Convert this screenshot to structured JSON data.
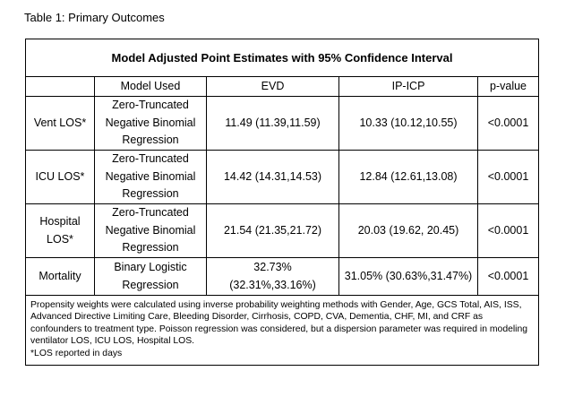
{
  "caption": "Table 1: Primary Outcomes",
  "table": {
    "title": "Model Adjusted Point Estimates with 95% Confidence Interval",
    "columns": [
      "",
      "Model Used",
      "EVD",
      "IP-ICP",
      "p-value"
    ],
    "rows": [
      {
        "label": "Vent LOS*",
        "model": "Zero-Truncated Negative Binomial Regression",
        "evd": "11.49 (11.39,11.59)",
        "ipicp": "10.33 (10.12,10.55)",
        "p": "<0.0001"
      },
      {
        "label": "ICU LOS*",
        "model": "Zero-Truncated Negative Binomial Regression",
        "evd": "14.42 (14.31,14.53)",
        "ipicp": "12.84 (12.61,13.08)",
        "p": "<0.0001"
      },
      {
        "label": "Hospital LOS*",
        "model": "Zero-Truncated Negative Binomial Regression",
        "evd": "21.54 (21.35,21.72)",
        "ipicp": "20.03 (19.62, 20.45)",
        "p": "<0.0001"
      },
      {
        "label": "Mortality",
        "model": "Binary Logistic Regression",
        "evd": "32.73% (32.31%,33.16%)",
        "ipicp": "31.05% (30.63%,31.47%)",
        "p": "<0.0001"
      }
    ],
    "footnote": "Propensity weights were calculated using inverse probability weighting methods with Gender, Age, GCS Total, AIS, ISS, Advanced Directive Limiting Care, Bleeding Disorder, Cirrhosis, COPD, CVA, Dementia, CHF, MI, and CRF as confounders to treatment type. Poisson regression was considered, but a dispersion parameter was required in modeling ventilator LOS, ICU LOS, Hospital LOS.",
    "footnote2": "*LOS reported in days"
  }
}
